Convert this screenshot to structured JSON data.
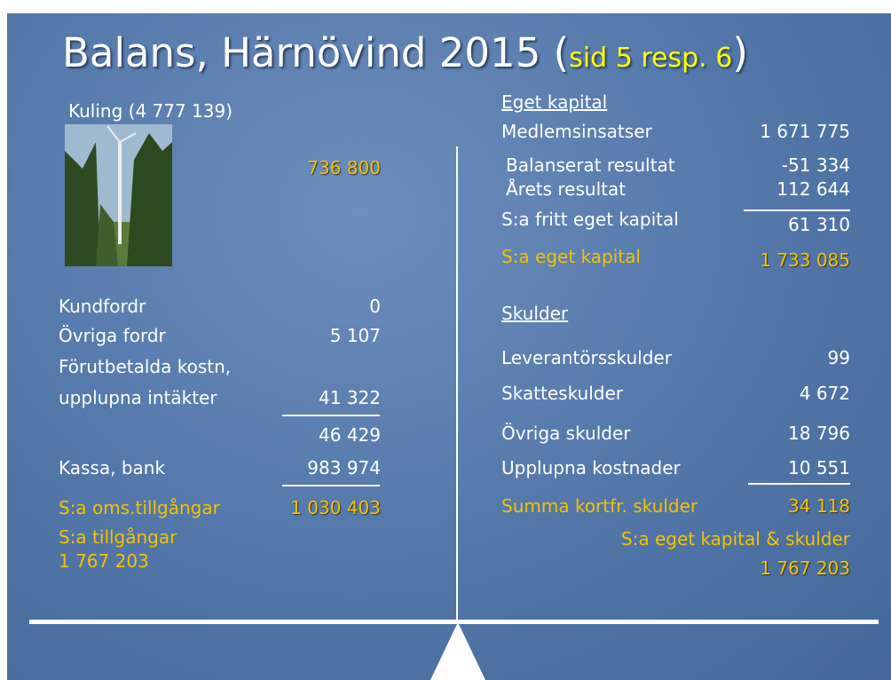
{
  "title": {
    "text": "Balans, Härnövind 2015",
    "open": "(",
    "ref": "sid 5 resp. 6",
    "close": ")"
  },
  "left": {
    "share": "Kuling (4 777 139)",
    "share_value": "736 800",
    "rows": [
      {
        "label": "Kundfordr",
        "value": "0"
      },
      {
        "label": "Övriga fordr",
        "value": "5 107"
      },
      {
        "label": "Förutbetalda kostn,"
      },
      {
        "label": "upplupna intäkter",
        "value": "41 322"
      },
      {
        "value": "46 429"
      },
      {
        "label": "Kassa, bank",
        "value": "983 974"
      },
      {
        "label": "S:a oms.tillgångar",
        "value": "1 030 403"
      }
    ],
    "total_label": "S:a tillgångar",
    "total_value": "1 767 203"
  },
  "right": {
    "equity_heading": "Eget kapital",
    "equity_rows": [
      {
        "label": "Medlemsinsatser",
        "value": "1 671 775"
      },
      {
        "label": "Balanserat resultat",
        "value": "-51 334"
      },
      {
        "label": "Årets resultat",
        "value": "112 644"
      },
      {
        "label": "S:a fritt eget kapital",
        "value": "61 310"
      },
      {
        "label": "S:a eget kapital",
        "value": "1 733 085"
      }
    ],
    "debt_heading": "Skulder",
    "debt_rows": [
      {
        "label": "Leverantörsskulder",
        "value": "99"
      },
      {
        "label": "Skatteskulder",
        "value": "4 672"
      },
      {
        "label": "Övriga skulder",
        "value": "18 796"
      },
      {
        "label": "Upplupna kostnader",
        "value": "10 551"
      },
      {
        "label": "Summa kortfr. skulder",
        "value": "34 118"
      }
    ],
    "total_label": "S:a eget kapital & skulder",
    "total_value": "1 767 203"
  }
}
